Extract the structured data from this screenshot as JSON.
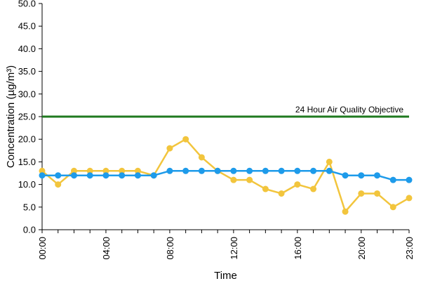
{
  "chart_data": {
    "type": "line",
    "xlabel": "Time",
    "ylabel": "Concentration (µg/m³)",
    "ylim": [
      0,
      50
    ],
    "yticks": [
      "0.0",
      "5.0",
      "10.0",
      "15.0",
      "20.0",
      "25.0",
      "30.0",
      "35.0",
      "40.0",
      "45.0",
      "50.0"
    ],
    "x": [
      0,
      1,
      2,
      3,
      4,
      5,
      6,
      7,
      8,
      9,
      10,
      11,
      12,
      13,
      14,
      15,
      16,
      17,
      18,
      19,
      20,
      21,
      22,
      23
    ],
    "xtick_labels": [
      {
        "x": 0,
        "label": "00:00"
      },
      {
        "x": 4,
        "label": "04:00"
      },
      {
        "x": 8,
        "label": "08:00"
      },
      {
        "x": 12,
        "label": "12:00"
      },
      {
        "x": 16,
        "label": "16:00"
      },
      {
        "x": 20,
        "label": "20:00"
      },
      {
        "x": 23,
        "label": "23:00"
      }
    ],
    "series": [
      {
        "color": "#f2c53d",
        "values": [
          13,
          10,
          13,
          13,
          13,
          13,
          13,
          12,
          18,
          20,
          16,
          13,
          11,
          11,
          9,
          8,
          10,
          9,
          15,
          4,
          8,
          8,
          5,
          7
        ]
      },
      {
        "color": "#1e9bea",
        "values": [
          12,
          12,
          12,
          12,
          12,
          12,
          12,
          12,
          13,
          13,
          13,
          13,
          13,
          13,
          13,
          13,
          13,
          13,
          13,
          12,
          12,
          12,
          11,
          11
        ]
      }
    ],
    "reference_line": {
      "value": 25,
      "label": "24 Hour Air Quality Objective",
      "color": "#1f7a1f"
    },
    "grid": false,
    "legend": "none"
  }
}
